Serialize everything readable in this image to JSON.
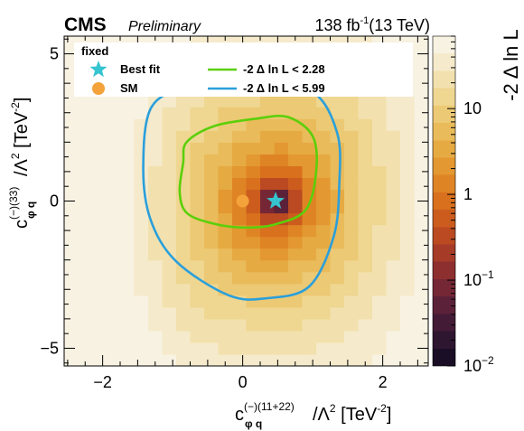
{
  "chart_data": {
    "type": "heatmap",
    "experiment": "CMS",
    "status": "Preliminary",
    "luminosity": "138 fb",
    "luminosity_exp": "-1",
    "energy": "(13 TeV)",
    "x_axis": {
      "label_main": "c",
      "label_sup": "(−)(11+22)",
      "label_sub": "φ q",
      "label_rest": "/Λ",
      "label_rest_sup": "2",
      "label_unit": " [TeV",
      "label_unit_sup": "-2",
      "label_end": "]",
      "range": [
        -2.55,
        2.65
      ],
      "ticks": [
        -2,
        0,
        2
      ],
      "tick_labels": [
        "−2",
        "0",
        "2"
      ]
    },
    "y_axis": {
      "label_main": "c",
      "label_sup": "(−)(33)",
      "label_sub": "φ q",
      "label_rest": "/Λ",
      "label_rest_sup": "2",
      "label_unit": " [TeV",
      "label_unit_sup": "-2",
      "label_end": "]",
      "range": [
        -5.6,
        5.6
      ],
      "ticks": [
        -5,
        0,
        5
      ],
      "tick_labels": [
        "−5",
        "0",
        "5"
      ]
    },
    "z_axis": {
      "label": "-2 Δ ln L",
      "scale": "log",
      "range": [
        0.01,
        70
      ],
      "ticks": [
        {
          "value": 10,
          "base": "10",
          "exp": ""
        },
        {
          "value": 1,
          "base": "1",
          "exp": ""
        },
        {
          "value": 0.1,
          "base": "10",
          "exp": "−1"
        },
        {
          "value": 0.01,
          "base": "10",
          "exp": "−2"
        }
      ]
    },
    "best_fit": {
      "x": 0.47,
      "y": 0.0
    },
    "sm": {
      "x": 0.0,
      "y": 0.0
    },
    "contours": [
      {
        "level": 2.28,
        "color": "#5bcf0a",
        "points": [
          [
            -0.8,
            2.0
          ],
          [
            -0.4,
            2.55
          ],
          [
            0.2,
            2.8
          ],
          [
            0.65,
            2.85
          ],
          [
            1.0,
            2.2
          ],
          [
            1.05,
            1.0
          ],
          [
            0.9,
            -0.3
          ],
          [
            0.45,
            -0.8
          ],
          [
            0.0,
            -0.9
          ],
          [
            -0.45,
            -0.75
          ],
          [
            -0.8,
            -0.4
          ],
          [
            -0.9,
            0.3
          ],
          [
            -0.85,
            1.3
          ]
        ]
      },
      {
        "level": 5.99,
        "color": "#2b9fdb",
        "points": [
          [
            -1.3,
            3.2
          ],
          [
            -0.75,
            3.85
          ],
          [
            0.2,
            4.05
          ],
          [
            1.0,
            3.7
          ],
          [
            1.35,
            2.3
          ],
          [
            1.38,
            0.6
          ],
          [
            1.3,
            -1.2
          ],
          [
            0.95,
            -2.9
          ],
          [
            0.35,
            -3.3
          ],
          [
            -0.2,
            -3.2
          ],
          [
            -0.95,
            -2.05
          ],
          [
            -1.32,
            -0.6
          ],
          [
            -1.42,
            1.2
          ]
        ]
      }
    ],
    "legend": {
      "placement": "top-left",
      "header": "fixed",
      "entries": [
        {
          "label": "Best fit",
          "marker": "star-icon",
          "color": "#35c4d0"
        },
        {
          "label": "SM",
          "marker": "circle-icon",
          "color": "#f4a23a"
        },
        {
          "label": "-2  Δ ln L < 2.28",
          "marker": "line",
          "color": "#5bcf0a"
        },
        {
          "label": "-2  Δ ln L < 5.99",
          "marker": "line",
          "color": "#2b9fdb"
        }
      ]
    },
    "colormap": [
      "#1a0e26",
      "#2e1530",
      "#441b36",
      "#5b2138",
      "#752735",
      "#8e2f2f",
      "#a63b28",
      "#bb4a22",
      "#cc5c1e",
      "#d8701e",
      "#df8424",
      "#e39831",
      "#e6aa43",
      "#e9bb5a",
      "#ecc974",
      "#efd691",
      "#f2e1ae",
      "#f5eacb",
      "#f8f2e2"
    ],
    "grid": false
  }
}
